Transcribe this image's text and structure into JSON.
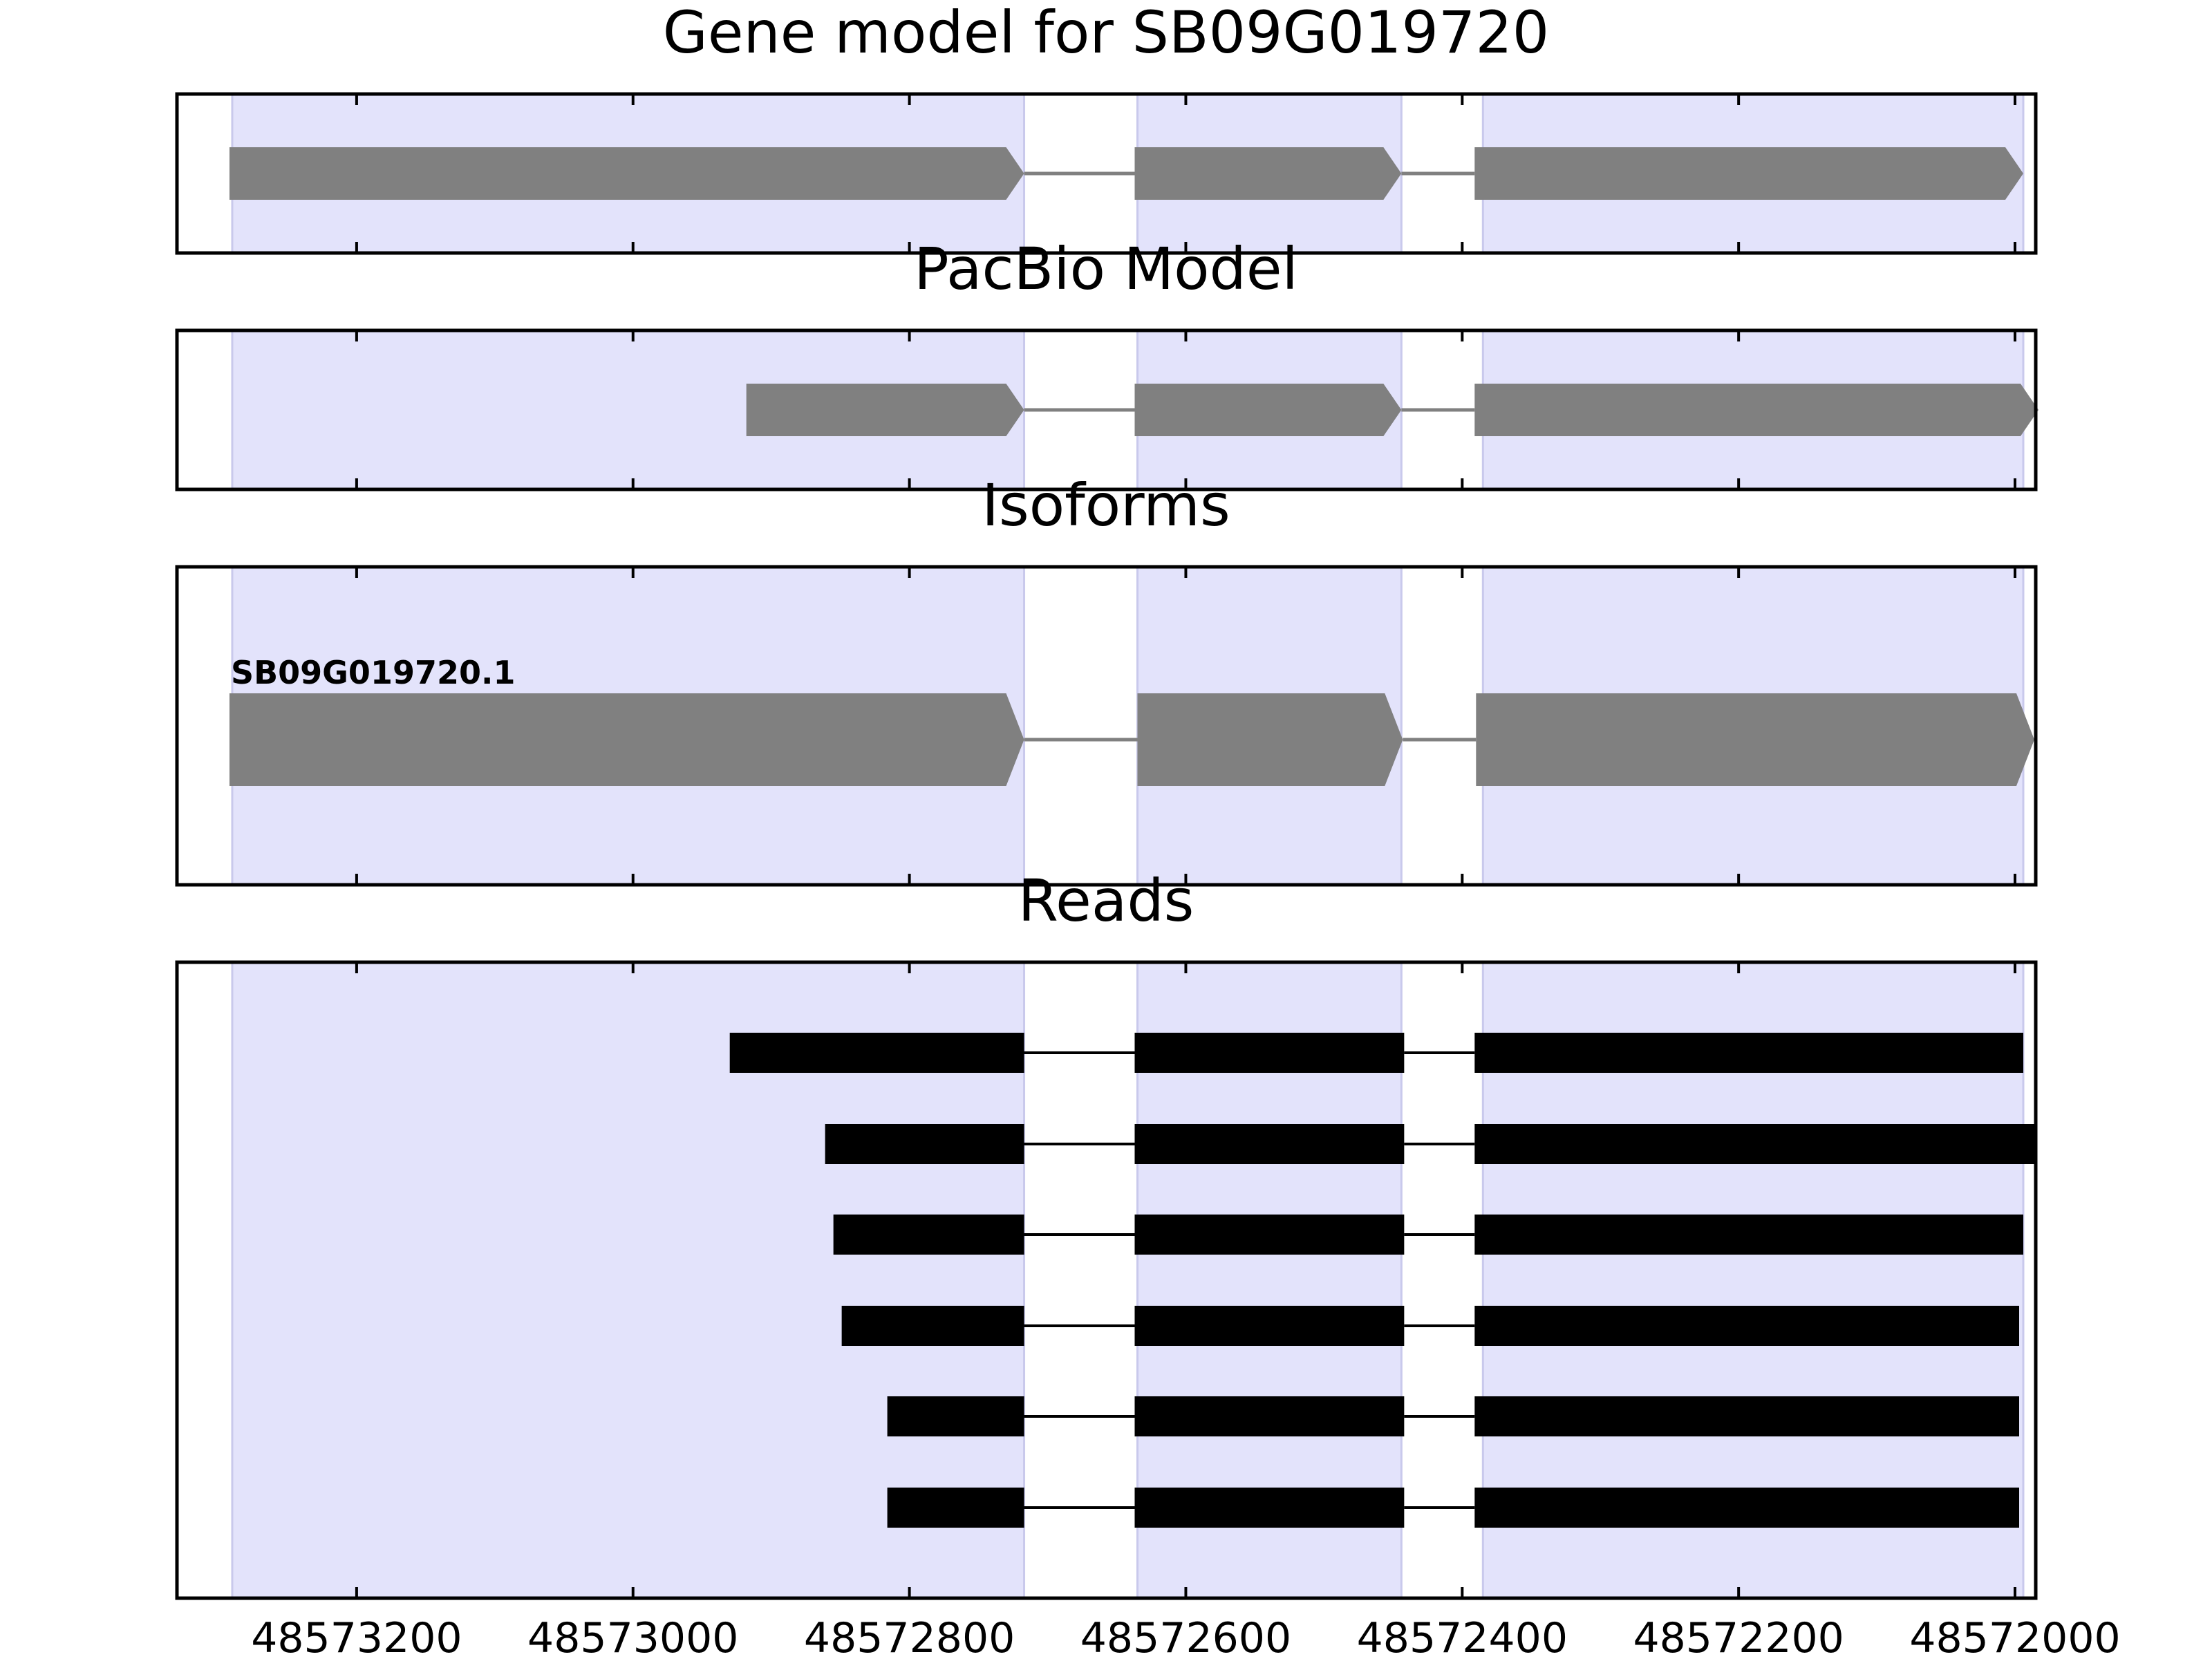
{
  "chart_data": [
    {
      "type": "gene-track",
      "title": "Gene model for SB09G019720",
      "xlim": [
        48573330,
        48571985
      ],
      "x_ticks": [
        48573200,
        48573000,
        48572800,
        48572600,
        48572400,
        48572200,
        48572000
      ],
      "highlight_regions": [
        [
          48573290,
          48572717
        ],
        [
          48572635,
          48572444
        ],
        [
          48572385,
          48571994
        ]
      ],
      "features": [
        {
          "exons": [
            [
              48573292,
              48572717
            ],
            [
              48572637,
              48572444
            ],
            [
              48572391,
              48571994
            ]
          ],
          "style": "arrow"
        }
      ]
    },
    {
      "type": "gene-track",
      "title": "PacBio Model",
      "xlim": [
        48573330,
        48571985
      ],
      "x_ticks": [
        48573200,
        48573000,
        48572800,
        48572600,
        48572400,
        48572200,
        48572000
      ],
      "highlight_regions": [
        [
          48573290,
          48572717
        ],
        [
          48572635,
          48572444
        ],
        [
          48572385,
          48571994
        ]
      ],
      "features": [
        {
          "exons": [
            [
              48572918,
              48572717
            ],
            [
              48572637,
              48572444
            ],
            [
              48572391,
              48571983
            ]
          ],
          "style": "arrow"
        }
      ]
    },
    {
      "type": "gene-track",
      "title": "Isoforms",
      "xlim": [
        48573330,
        48571985
      ],
      "x_ticks": [
        48573200,
        48573000,
        48572800,
        48572600,
        48572400,
        48572200,
        48572000
      ],
      "highlight_regions": [
        [
          48573290,
          48572717
        ],
        [
          48572635,
          48572444
        ],
        [
          48572385,
          48571994
        ]
      ],
      "features": [
        {
          "name": "SB09G019720.1",
          "exons": [
            [
              48573292,
              48572717
            ],
            [
              48572635,
              48572443
            ],
            [
              48572390,
              48571986
            ]
          ],
          "style": "arrow"
        }
      ]
    },
    {
      "type": "gene-track",
      "title": "Reads",
      "xlim": [
        48573330,
        48571985
      ],
      "x_ticks": [
        48573200,
        48573000,
        48572800,
        48572600,
        48572400,
        48572200,
        48572000
      ],
      "x_tick_labels": [
        "48573200",
        "48573000",
        "48572800",
        "48572600",
        "48572400",
        "48572200",
        "48572000"
      ],
      "highlight_regions": [
        [
          48573290,
          48572717
        ],
        [
          48572635,
          48572444
        ],
        [
          48572385,
          48571994
        ]
      ],
      "features": [
        {
          "exons": [
            [
              48572930,
              48572717
            ],
            [
              48572637,
              48572442
            ],
            [
              48572391,
              48571994
            ]
          ],
          "style": "block"
        },
        {
          "exons": [
            [
              48572861,
              48572717
            ],
            [
              48572637,
              48572442
            ],
            [
              48572391,
              48571984
            ]
          ],
          "style": "block"
        },
        {
          "exons": [
            [
              48572855,
              48572717
            ],
            [
              48572637,
              48572442
            ],
            [
              48572391,
              48571994
            ]
          ],
          "style": "block"
        },
        {
          "exons": [
            [
              48572849,
              48572717
            ],
            [
              48572637,
              48572442
            ],
            [
              48572391,
              48571997
            ]
          ],
          "style": "block"
        },
        {
          "exons": [
            [
              48572816,
              48572717
            ],
            [
              48572637,
              48572442
            ],
            [
              48572391,
              48571997
            ]
          ],
          "style": "block"
        },
        {
          "exons": [
            [
              48572816,
              48572717
            ],
            [
              48572637,
              48572442
            ],
            [
              48572391,
              48571997
            ]
          ],
          "style": "block"
        }
      ]
    }
  ],
  "colors": {
    "highlight": "#e3e3fb",
    "highlight_edge": "#c9c9ec",
    "gene_fill": "#808080",
    "read_fill": "#000000",
    "frame": "#000000"
  }
}
